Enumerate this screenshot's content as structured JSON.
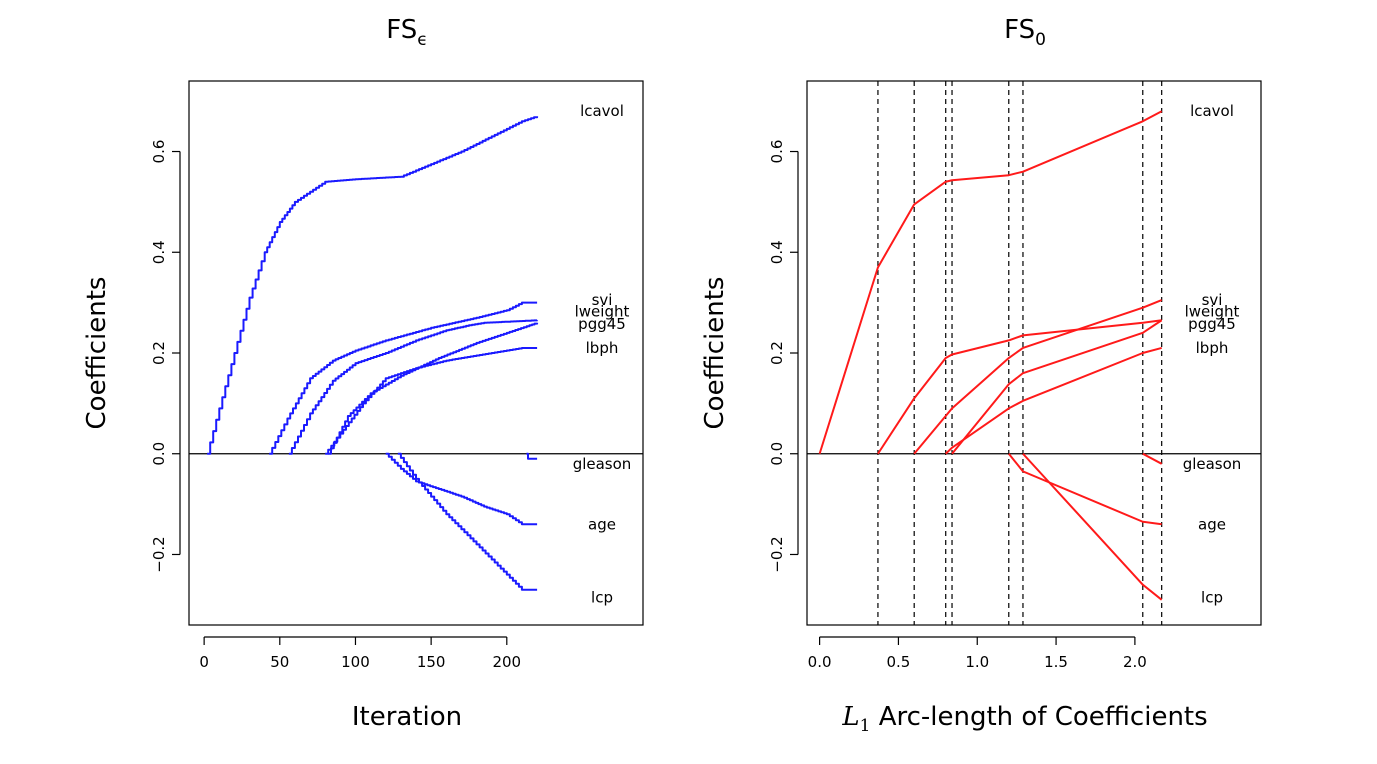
{
  "chart_data": [
    {
      "type": "line",
      "title": "FS",
      "title_subscript": "ϵ",
      "xlabel": "Iteration",
      "ylabel": "Coefficients",
      "xlim": [
        -10,
        290
      ],
      "ylim": [
        -0.34,
        0.74
      ],
      "xticks": [
        0,
        50,
        100,
        150,
        200
      ],
      "xtick_labels": [
        "0",
        "50",
        "100",
        "150",
        "200"
      ],
      "yticks": [
        -0.2,
        0.0,
        0.2,
        0.4,
        0.6
      ],
      "ytick_labels": [
        "−0.2",
        "0.0",
        "0.2",
        "0.4",
        "0.6"
      ],
      "color": "#1a1aff",
      "step": true,
      "zero_line": true,
      "series": [
        {
          "name": "lcavol",
          "label_y": 0.68,
          "x": [
            2,
            10,
            20,
            30,
            40,
            45,
            50,
            55,
            60,
            70,
            80,
            100,
            130,
            150,
            170,
            190,
            210,
            220
          ],
          "y": [
            0.0,
            0.09,
            0.2,
            0.31,
            0.4,
            0.43,
            0.46,
            0.48,
            0.5,
            0.52,
            0.54,
            0.545,
            0.55,
            0.575,
            0.6,
            0.63,
            0.66,
            0.67
          ]
        },
        {
          "name": "svi",
          "label_y": 0.305,
          "x": [
            43,
            55,
            70,
            85,
            100,
            120,
            150,
            180,
            200,
            210,
            220
          ],
          "y": [
            0.0,
            0.07,
            0.15,
            0.185,
            0.205,
            0.225,
            0.25,
            0.27,
            0.285,
            0.3,
            0.3
          ]
        },
        {
          "name": "lweight",
          "label_y": 0.282,
          "x": [
            56,
            70,
            85,
            100,
            120,
            140,
            160,
            175,
            185,
            220
          ],
          "y": [
            0.0,
            0.08,
            0.145,
            0.18,
            0.2,
            0.225,
            0.245,
            0.255,
            0.26,
            0.265
          ]
        },
        {
          "name": "pgg45",
          "label_y": 0.258,
          "x": [
            82,
            95,
            110,
            130,
            155,
            180,
            200,
            215,
            220
          ],
          "y": [
            0.0,
            0.075,
            0.12,
            0.155,
            0.19,
            0.22,
            0.24,
            0.255,
            0.26
          ]
        },
        {
          "name": "lbph",
          "label_y": 0.21,
          "x": [
            80,
            90,
            105,
            120,
            140,
            160,
            190,
            210,
            220
          ],
          "y": [
            0.0,
            0.04,
            0.1,
            0.15,
            0.17,
            0.185,
            0.2,
            0.21,
            0.21
          ]
        },
        {
          "name": "gleason",
          "label_y": -0.02,
          "x": [
            213,
            214,
            220
          ],
          "y": [
            0.0,
            -0.01,
            -0.01
          ]
        },
        {
          "name": "age",
          "label_y": -0.14,
          "x": [
            120,
            130,
            140,
            155,
            170,
            185,
            200,
            210,
            220
          ],
          "y": [
            0.0,
            -0.03,
            -0.055,
            -0.07,
            -0.085,
            -0.105,
            -0.12,
            -0.14,
            -0.14
          ]
        },
        {
          "name": "lcp",
          "label_y": -0.285,
          "x": [
            128,
            140,
            160,
            180,
            200,
            210,
            220
          ],
          "y": [
            0.0,
            -0.05,
            -0.12,
            -0.18,
            -0.24,
            -0.27,
            -0.27
          ]
        }
      ]
    },
    {
      "type": "line",
      "title": "FS",
      "title_subscript": "0",
      "xlabel_var": "L",
      "xlabel_sub": "1",
      "xlabel": "Arc-length of Coefficients",
      "ylabel": "Coefficients",
      "xlim": [
        -0.08,
        2.8
      ],
      "ylim": [
        -0.34,
        0.74
      ],
      "xticks": [
        0.0,
        0.5,
        1.0,
        1.5,
        2.0
      ],
      "xtick_labels": [
        "0.0",
        "0.5",
        "1.0",
        "1.5",
        "2.0"
      ],
      "yticks": [
        -0.2,
        0.0,
        0.2,
        0.4,
        0.6
      ],
      "ytick_labels": [
        "−0.2",
        "0.0",
        "0.2",
        "0.4",
        "0.6"
      ],
      "color": "#ff1a1a",
      "step": false,
      "zero_line": true,
      "vlines": [
        0.37,
        0.6,
        0.8,
        0.84,
        1.2,
        1.29,
        2.05,
        2.17
      ],
      "series": [
        {
          "name": "lcavol",
          "label_y": 0.68,
          "x": [
            0.0,
            0.37,
            0.6,
            0.8,
            0.84,
            1.2,
            1.29,
            2.05,
            2.17
          ],
          "y": [
            0.0,
            0.37,
            0.495,
            0.54,
            0.543,
            0.553,
            0.56,
            0.66,
            0.68
          ]
        },
        {
          "name": "svi",
          "label_y": 0.305,
          "x": [
            0.6,
            0.84,
            1.2,
            1.29,
            2.05,
            2.17
          ],
          "y": [
            0.0,
            0.09,
            0.19,
            0.21,
            0.29,
            0.305
          ]
        },
        {
          "name": "lweight",
          "label_y": 0.282,
          "x": [
            0.37,
            0.6,
            0.8,
            0.84,
            1.2,
            1.29,
            2.05,
            2.17
          ],
          "y": [
            0.0,
            0.11,
            0.19,
            0.197,
            0.225,
            0.235,
            0.26,
            0.265
          ]
        },
        {
          "name": "pgg45",
          "label_y": 0.258,
          "x": [
            0.84,
            1.2,
            1.29,
            2.05,
            2.17
          ],
          "y": [
            0.0,
            0.138,
            0.16,
            0.24,
            0.265
          ]
        },
        {
          "name": "lbph",
          "label_y": 0.21,
          "x": [
            0.8,
            0.84,
            1.2,
            1.29,
            2.05,
            2.17
          ],
          "y": [
            0.0,
            0.012,
            0.09,
            0.105,
            0.2,
            0.21
          ]
        },
        {
          "name": "gleason",
          "label_y": -0.02,
          "x": [
            2.05,
            2.17
          ],
          "y": [
            0.0,
            -0.02
          ]
        },
        {
          "name": "age",
          "label_y": -0.14,
          "x": [
            1.2,
            1.29,
            2.05,
            2.17
          ],
          "y": [
            0.0,
            -0.035,
            -0.135,
            -0.14
          ]
        },
        {
          "name": "lcp",
          "label_y": -0.285,
          "x": [
            1.29,
            2.05,
            2.17
          ],
          "y": [
            0.0,
            -0.26,
            -0.29
          ]
        }
      ]
    }
  ]
}
